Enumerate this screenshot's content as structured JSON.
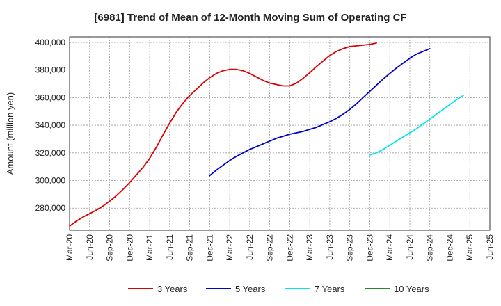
{
  "chart_data": {
    "type": "line",
    "title": "[6981]  Trend of Mean of 12-Month Moving Sum of Operating CF",
    "xlabel": "",
    "ylabel": "Amount (million yen)",
    "ylim": [
      264000,
      404000
    ],
    "yticks": [
      280000,
      300000,
      320000,
      340000,
      360000,
      380000,
      400000
    ],
    "ytick_labels": [
      "280,000",
      "300,000",
      "320,000",
      "340,000",
      "360,000",
      "380,000",
      "400,000"
    ],
    "x_tick_labels": [
      "Mar-20",
      "Jun-20",
      "Sep-20",
      "Dec-20",
      "Mar-21",
      "Jun-21",
      "Sep-21",
      "Dec-21",
      "Mar-22",
      "Jun-22",
      "Sep-22",
      "Dec-22",
      "Mar-23",
      "Jun-23",
      "Sep-23",
      "Dec-23",
      "Mar-24",
      "Jun-24",
      "Sep-24",
      "Dec-24",
      "Mar-25",
      "Jun-25"
    ],
    "grid": true,
    "legend_position": "bottom",
    "series": [
      {
        "name": "3 Years",
        "color": "#dd0000",
        "start_index": 0,
        "values": [
          267000,
          270500,
          273500,
          276000,
          278500,
          281500,
          285000,
          289000,
          293500,
          298500,
          304000,
          309500,
          316000,
          324000,
          333000,
          341500,
          349500,
          356000,
          361500,
          366000,
          370500,
          374500,
          377500,
          379500,
          380500,
          380500,
          379500,
          377500,
          375000,
          372500,
          370500,
          369500,
          368500,
          368500,
          370500,
          374000,
          378000,
          382500,
          386500,
          390500,
          393500,
          395500,
          397000,
          397500,
          398000,
          398500,
          399500
        ]
      },
      {
        "name": "5 Years",
        "color": "#0000cc",
        "start_index": 21,
        "values": [
          303500,
          307500,
          311000,
          314500,
          317500,
          320000,
          322500,
          324500,
          326500,
          328500,
          330500,
          332000,
          333500,
          334500,
          335500,
          337000,
          338500,
          340500,
          342500,
          345000,
          348000,
          351500,
          355500,
          360000,
          364500,
          369000,
          373500,
          377500,
          381500,
          385000,
          388500,
          391500,
          393500,
          395500
        ]
      },
      {
        "name": "7 Years",
        "color": "#00e5ee",
        "start_index": 45,
        "values": [
          318500,
          320000,
          322500,
          325500,
          328500,
          331500,
          334500,
          337500,
          341000,
          344500,
          348000,
          351500,
          355000,
          358500,
          361500
        ]
      },
      {
        "name": "10 Years",
        "color": "#228b22",
        "start_index": 0,
        "values": []
      }
    ]
  }
}
